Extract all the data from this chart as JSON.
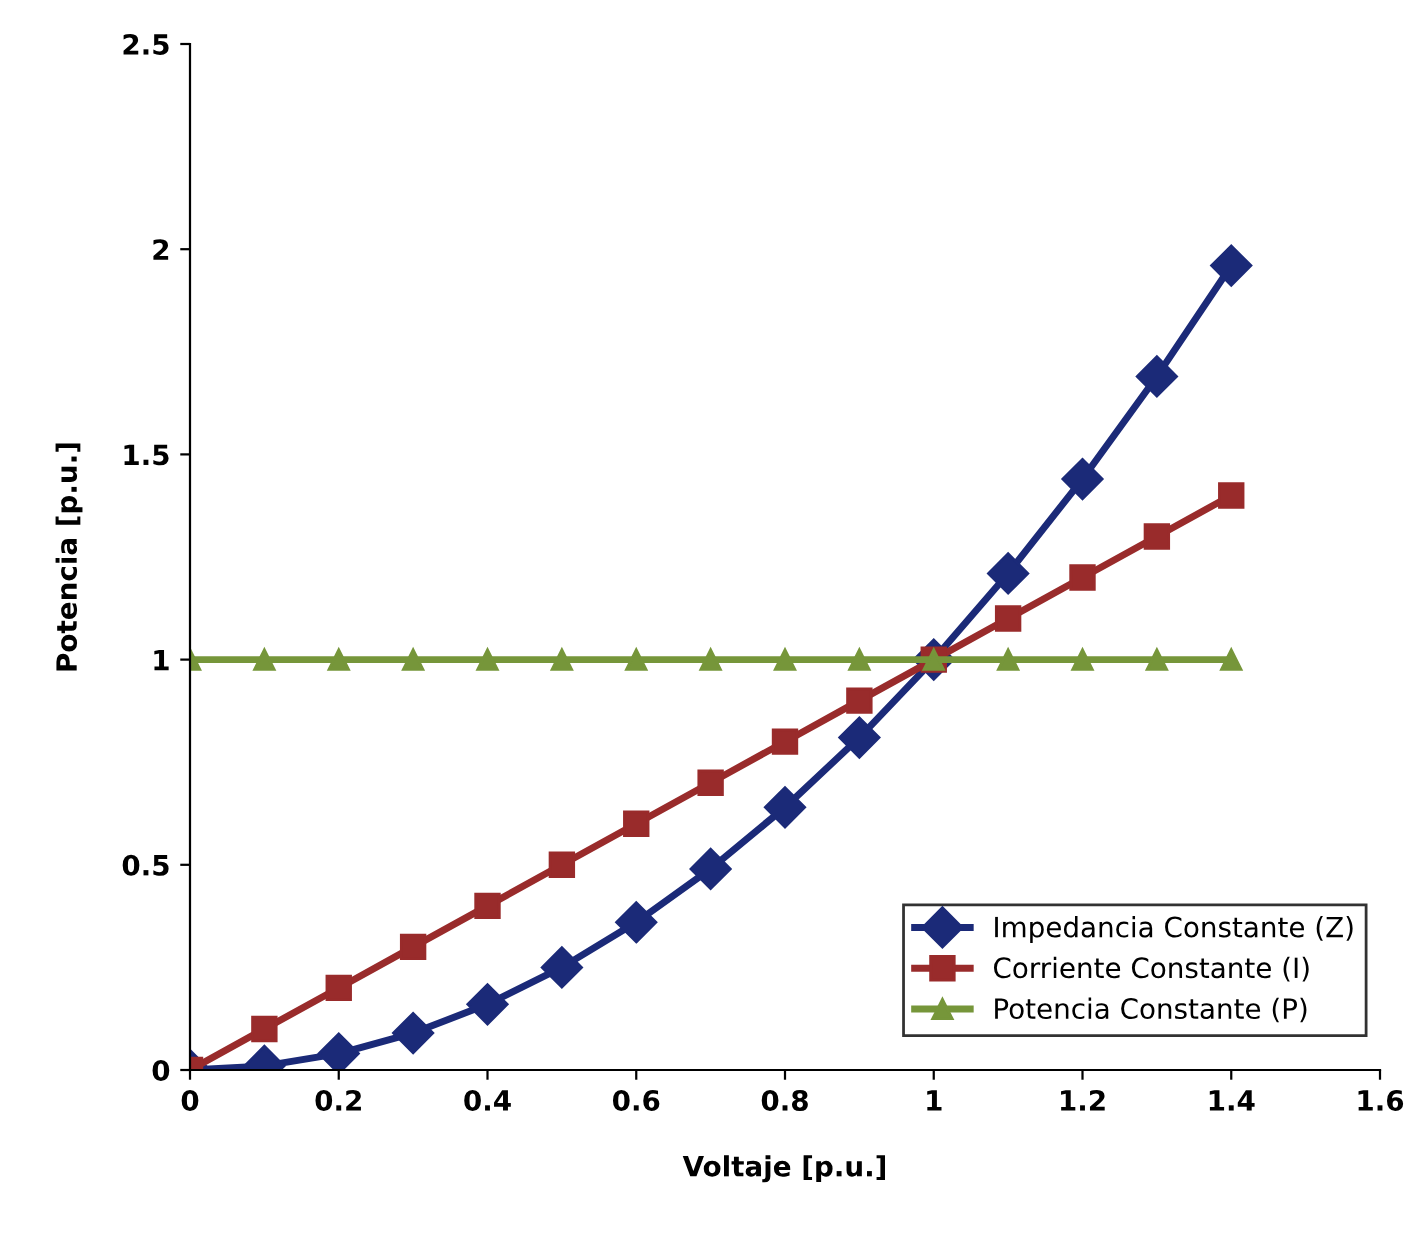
{
  "chart_data": {
    "type": "line",
    "xlabel": "Voltaje [p.u.]",
    "ylabel": "Potencia [p.u.]",
    "x": [
      0,
      0.1,
      0.2,
      0.3,
      0.4,
      0.5,
      0.6,
      0.7,
      0.8,
      0.9,
      1,
      1.1,
      1.2,
      1.3,
      1.4
    ],
    "series": [
      {
        "name": "Impedancia Constante (Z)",
        "color": "#1b2a78",
        "marker": "diamond",
        "values": [
          0,
          0.01,
          0.04,
          0.09,
          0.16,
          0.25,
          0.36,
          0.49,
          0.64,
          0.81,
          1,
          1.21,
          1.44,
          1.69,
          1.96
        ]
      },
      {
        "name": "Corriente Constante (I)",
        "color": "#992b2b",
        "marker": "square",
        "values": [
          0,
          0.1,
          0.2,
          0.3,
          0.4,
          0.5,
          0.6,
          0.7,
          0.8,
          0.9,
          1,
          1.1,
          1.2,
          1.3,
          1.4
        ]
      },
      {
        "name": "Potencia Constante (P)",
        "color": "#76963a",
        "marker": "triangle",
        "values": [
          1,
          1,
          1,
          1,
          1,
          1,
          1,
          1,
          1,
          1,
          1,
          1,
          1,
          1,
          1
        ]
      }
    ],
    "xlim": [
      0,
      1.6
    ],
    "xticks": [
      0,
      0.2,
      0.4,
      0.6,
      0.8,
      1,
      1.2,
      1.4,
      1.6
    ],
    "ylim": [
      0,
      2.5
    ],
    "yticks": [
      0,
      0.5,
      1,
      1.5,
      2,
      2.5
    ],
    "grid": false,
    "legend": "bottom right",
    "line_style": "solid"
  }
}
